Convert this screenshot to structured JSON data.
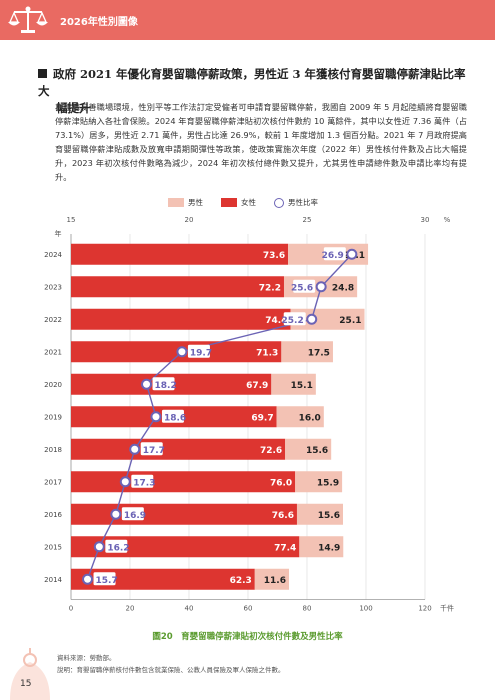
{
  "header": {
    "title": "2026年性別圖像"
  },
  "section": {
    "title_line1": "政府 2021 年優化育嬰留職停薪政策，男性近 3 年獲核付育嬰留職停薪津貼比率大",
    "title_line2": "幅提升"
  },
  "body_paragraph": "為建構友善職場環境，性別平等工作法訂定受僱者可申請育嬰留職停薪，我國自 2009 年 5 月起陸續將育嬰留職停薪津貼納入各社會保險。2024 年育嬰留職停薪津貼初次核付件數約 10 萬餘件，其中以女性近 7.36 萬件（占 73.1%）居多，男性近 2.71 萬件，男性占比達 26.9%，較前 1 年度增加 1.3 個百分點。2021 年 7 月政府提高育嬰留職停薪津貼成數及放寬申請期間彈性等政策，使政策實施次年度（2022 年）男性核付件數及占比大幅提升，2023 年初次核付件數略為減少，2024 年初次核付總件數又提升，尤其男性申請總件數及申請比率均有提升。",
  "legend": {
    "male": "男性",
    "female": "女性",
    "ratio": "男性比率"
  },
  "chart_data": {
    "type": "bar",
    "orientation": "horizontal-stacked",
    "categories": [
      "2024",
      "2023",
      "2022",
      "2021",
      "2020",
      "2019",
      "2018",
      "2017",
      "2016",
      "2015",
      "2014"
    ],
    "series": [
      {
        "name": "女性",
        "values": [
          73.6,
          72.2,
          74.4,
          71.3,
          67.9,
          69.7,
          72.6,
          76.0,
          76.6,
          77.4,
          62.3
        ],
        "color": "#dd3530"
      },
      {
        "name": "男性",
        "values": [
          27.1,
          24.8,
          25.1,
          17.5,
          15.1,
          16.0,
          15.6,
          15.9,
          15.6,
          14.9,
          11.6
        ],
        "color": "#f3c2b4"
      }
    ],
    "ratio_series": {
      "name": "男性比率",
      "values": [
        26.9,
        25.6,
        25.2,
        19.7,
        18.2,
        18.6,
        17.7,
        17.3,
        16.9,
        16.2,
        15.7
      ],
      "color": "#6b63b5"
    },
    "bottom_axis": {
      "ticks": [
        0,
        20,
        40,
        60,
        80,
        100,
        120
      ],
      "unit": "千件",
      "range": [
        0,
        120
      ]
    },
    "top_axis": {
      "ticks": [
        15,
        20,
        25,
        30
      ],
      "unit": "%",
      "range": [
        15,
        30
      ]
    },
    "y_axis_label": "年",
    "caption": "圖20　育嬰留職停薪津貼初次核付件數及男性比率"
  },
  "source": {
    "line1": "資料來源：勞動部。",
    "line2": "說明：育嬰留職停薪核付件數包含就業保險、公教人員保險及軍人保險之件數。"
  },
  "page_number": "15"
}
